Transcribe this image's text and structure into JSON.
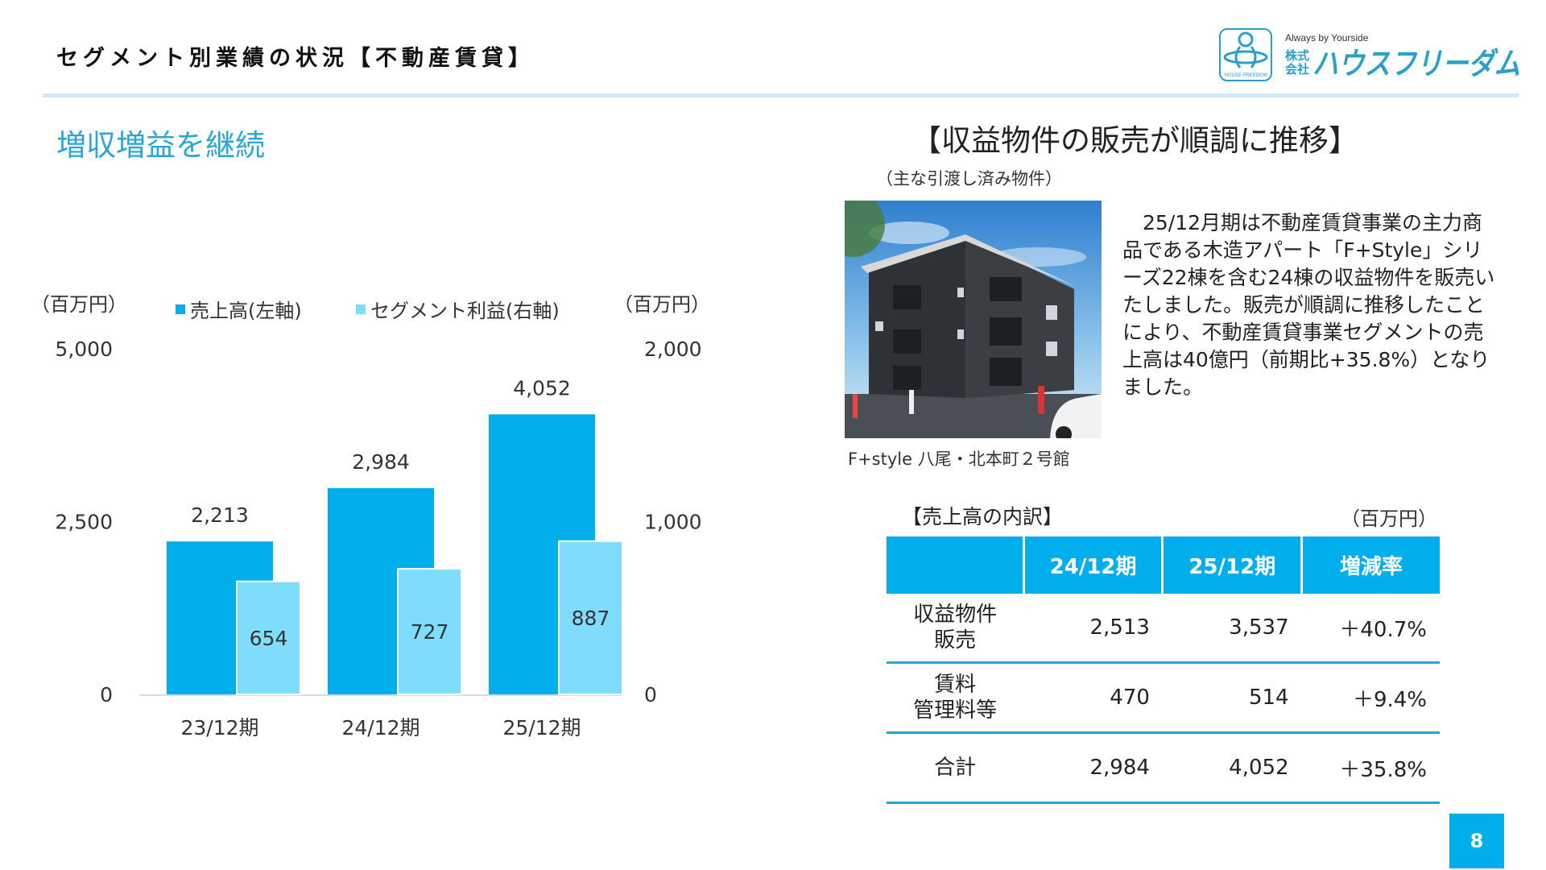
{
  "header": {
    "title": "セグメント別業績の状況【不動産賃貸】",
    "logo": {
      "tagline": "Always by Yourside",
      "company_prefix_top": "株式",
      "company_prefix_bottom": "会社",
      "company_name": "ハウスフリーダム",
      "emblem_text": "HOUSE FREEDOM"
    }
  },
  "left": {
    "subtitle": "増収増益を継続"
  },
  "colors": {
    "accent": "#00aeeb",
    "sales_bar": "#00aeeb",
    "profit_bar": "#7fdcfd",
    "subtitle": "#2aa6d6",
    "rule": "#cfeaf6"
  },
  "chart_data": {
    "type": "bar",
    "categories": [
      "23/12期",
      "24/12期",
      "25/12期"
    ],
    "series": [
      {
        "name": "売上高(左軸)",
        "axis": "left",
        "values": [
          2213,
          2984,
          4052
        ],
        "labels": [
          "2,213",
          "2,984",
          "4,052"
        ],
        "color": "#00aeeb"
      },
      {
        "name": "セグメント利益(右軸)",
        "axis": "right",
        "values": [
          654,
          727,
          887
        ],
        "labels": [
          "654",
          "727",
          "887"
        ],
        "color": "#7fdcfd"
      }
    ],
    "left_axis": {
      "unit": "（百万円）",
      "ylim": [
        0,
        5000
      ],
      "ticks": [
        "0",
        "2,500",
        "5,000"
      ]
    },
    "right_axis": {
      "unit": "（百万円）",
      "ylim": [
        0,
        2000
      ],
      "ticks": [
        "0",
        "1,000",
        "2,000"
      ]
    },
    "legend_placement": "top",
    "grid": false
  },
  "right": {
    "heading": "【収益物件の販売が順調に推移】",
    "note": "（主な引渡し済み物件）",
    "photo_caption": "F+style 八尾・北本町２号館",
    "description": "25/12月期は不動産賃貸事業の主力商品である木造アパート「F+Style」シリーズ22棟を含む24棟の収益物件を販売いたしました。販売が順調に推移したことにより、不動産賃貸事業セグメントの売上高は40億円（前期比+35.8%）となりました。"
  },
  "breakdown": {
    "label": "【売上高の内訳】",
    "unit": "（百万円）",
    "columns": [
      "",
      "24/12期",
      "25/12期",
      "増減率"
    ],
    "rows": [
      {
        "item_line1": "収益物件",
        "item_line2": "販売",
        "prev": "2,513",
        "curr": "3,537",
        "change": "＋40.7%"
      },
      {
        "item_line1": "賃料",
        "item_line2": "管理料等",
        "prev": "470",
        "curr": "514",
        "change": "＋9.4%"
      },
      {
        "item_line1": "合計",
        "item_line2": "",
        "prev": "2,984",
        "curr": "4,052",
        "change": "＋35.8%"
      }
    ]
  },
  "page_number": "8"
}
